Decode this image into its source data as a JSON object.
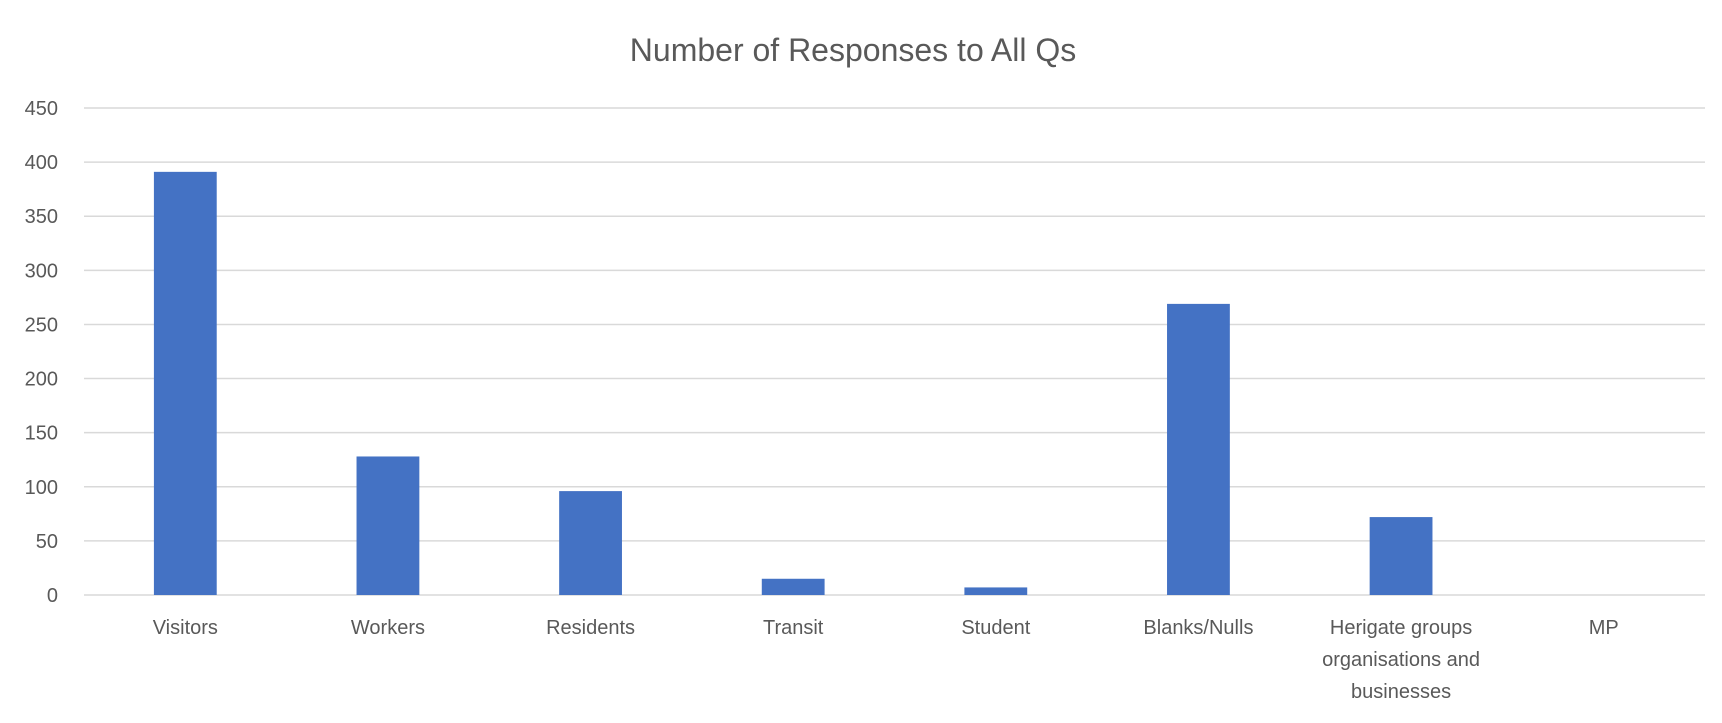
{
  "chart_data": {
    "type": "bar",
    "title": "Number of Responses to All Qs",
    "xlabel": "",
    "ylabel": "",
    "categories": [
      [
        "Visitors"
      ],
      [
        "Workers"
      ],
      [
        "Residents"
      ],
      [
        "Transit"
      ],
      [
        "Student"
      ],
      [
        "Blanks/Nulls"
      ],
      [
        "Herigate groups",
        "organisations and",
        "businesses"
      ],
      [
        "MP"
      ]
    ],
    "values": [
      391,
      128,
      96,
      15,
      7,
      269,
      72,
      0
    ],
    "yticks": [
      0,
      50,
      100,
      150,
      200,
      250,
      300,
      350,
      400,
      450
    ],
    "ylim": [
      0,
      450
    ],
    "grid": true,
    "legend": "none",
    "bar_color": "#4472c4"
  }
}
